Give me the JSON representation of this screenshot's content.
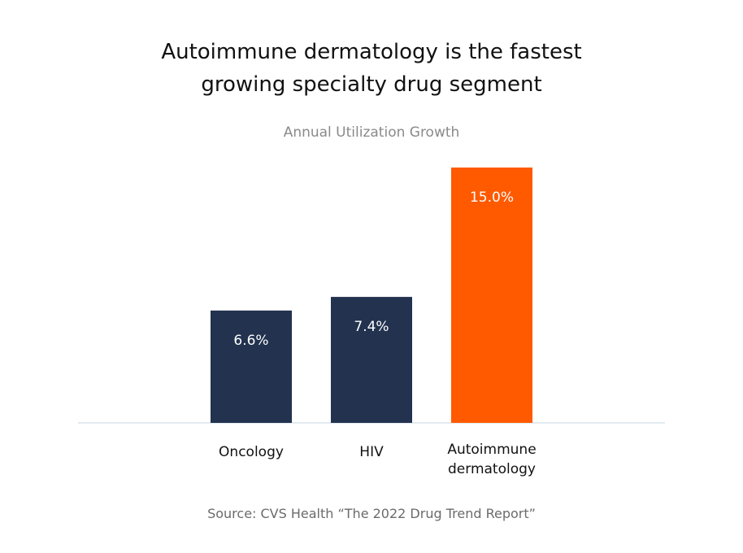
{
  "title": {
    "line1": "Autoimmune dermatology is the fastest",
    "line2": "growing specialty drug segment"
  },
  "subtitle": "Annual Utilization Growth",
  "source": "Source: CVS Health “The 2022 Drug Trend Report”",
  "colors": {
    "standard": "#22324f",
    "highlight": "#ff5a00",
    "axis": "#c4d4dd",
    "value_label": "#ffffff",
    "category_label": "#111111"
  },
  "chart_data": {
    "type": "bar",
    "categories": [
      [
        "Oncology"
      ],
      [
        "HIV"
      ],
      [
        "Autoimmune",
        "dermatology"
      ]
    ],
    "values": [
      6.6,
      7.4,
      15.0
    ],
    "data_labels": [
      "6.6%",
      "7.4%",
      "15.0%"
    ],
    "highlight_index": 2,
    "ylim": [
      0,
      15
    ],
    "grid": false,
    "legend": "none",
    "title": "Annual Utilization Growth",
    "xlabel": "",
    "ylabel": ""
  }
}
